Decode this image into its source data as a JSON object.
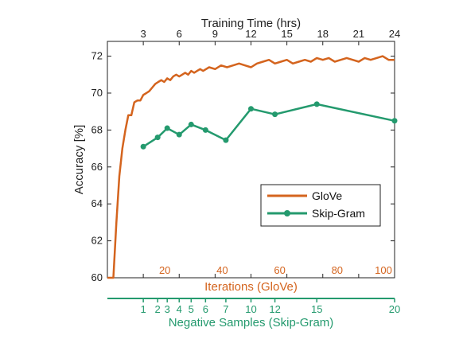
{
  "chart_data": {
    "type": "line",
    "top_axis": {
      "title": "Training Time (hrs)",
      "ticks": [
        3,
        6,
        9,
        12,
        15,
        18,
        21,
        24
      ],
      "range": [
        0,
        24
      ]
    },
    "y_axis": {
      "title": "Accuracy [%]",
      "ticks": [
        60,
        62,
        64,
        66,
        68,
        70,
        72
      ],
      "range": [
        60,
        72.8
      ]
    },
    "iterations_axis": {
      "title": "Iterations (GloVe)",
      "ticks": [
        20,
        40,
        60,
        80,
        100
      ],
      "range": [
        0,
        100
      ]
    },
    "negative_samples_axis": {
      "title": "Negative Samples (Skip-Gram)",
      "ticks": [
        1,
        2,
        3,
        4,
        5,
        6,
        7,
        10,
        12,
        15,
        20
      ]
    },
    "legend": {
      "placement": "lower-right",
      "entries": [
        "GloVe",
        "Skip-Gram"
      ]
    },
    "colors": {
      "glove": "#d4641e",
      "skipgram": "#249a6e"
    },
    "series": [
      {
        "name": "GloVe",
        "time_hrs": [
          0.0,
          0.5,
          0.75,
          1.0,
          1.25,
          1.5,
          1.75,
          2.0,
          2.25,
          2.5,
          2.75,
          3.0,
          3.25,
          3.5,
          3.75,
          4.0,
          4.25,
          4.5,
          4.75,
          5.0,
          5.25,
          5.5,
          5.75,
          6.0,
          6.25,
          6.5,
          6.75,
          7.0,
          7.25,
          7.5,
          7.75,
          8.0,
          8.5,
          9.0,
          9.5,
          10.0,
          10.5,
          11.0,
          11.5,
          12.0,
          12.5,
          13.0,
          13.5,
          14.0,
          14.5,
          15.0,
          15.5,
          16.0,
          16.5,
          17.0,
          17.5,
          18.0,
          18.5,
          19.0,
          19.5,
          20.0,
          20.5,
          21.0,
          21.5,
          22.0,
          22.5,
          23.0,
          23.5,
          24.0
        ],
        "accuracy": [
          60.0,
          60.0,
          63.0,
          65.5,
          67.0,
          68.0,
          68.8,
          68.8,
          69.5,
          69.6,
          69.6,
          69.9,
          70.0,
          70.1,
          70.3,
          70.5,
          70.6,
          70.7,
          70.6,
          70.8,
          70.7,
          70.9,
          71.0,
          70.9,
          71.0,
          71.1,
          71.0,
          71.2,
          71.1,
          71.2,
          71.3,
          71.2,
          71.4,
          71.3,
          71.5,
          71.4,
          71.5,
          71.6,
          71.5,
          71.4,
          71.6,
          71.7,
          71.8,
          71.6,
          71.7,
          71.8,
          71.6,
          71.7,
          71.8,
          71.7,
          71.9,
          71.8,
          71.9,
          71.7,
          71.8,
          71.9,
          71.8,
          71.7,
          71.9,
          71.8,
          71.9,
          72.0,
          71.8,
          71.8
        ]
      },
      {
        "name": "Skip-Gram",
        "time_hrs": [
          3.0,
          4.2,
          5.0,
          6.0,
          7.0,
          8.2,
          9.9,
          12.0,
          14.0,
          17.5,
          24.0
        ],
        "accuracy": [
          67.1,
          67.6,
          68.1,
          67.75,
          68.3,
          68.0,
          67.45,
          69.15,
          68.85,
          69.4,
          68.5
        ]
      }
    ]
  }
}
